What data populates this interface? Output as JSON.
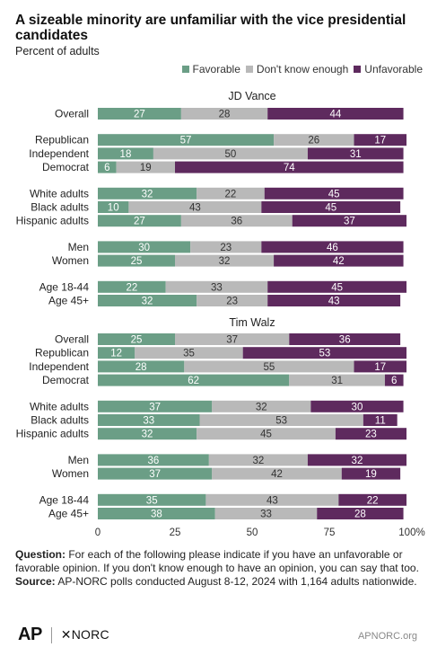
{
  "title": "A sizeable minority are unfamiliar with the vice presidential candidates",
  "subtitle": "Percent of adults",
  "legend": [
    {
      "label": "Favorable",
      "color": "#6b9e86"
    },
    {
      "label": "Don't know enough",
      "color": "#b9b9b9"
    },
    {
      "label": "Unfavorable",
      "color": "#5e2a5e"
    }
  ],
  "chart_data": {
    "type": "bar",
    "orientation": "horizontal",
    "stacked": true,
    "xlim": [
      0,
      100
    ],
    "x_ticks": [
      "0",
      "25",
      "50",
      "75",
      "100%"
    ],
    "series_names": [
      "Favorable",
      "Don't know enough",
      "Unfavorable"
    ],
    "groups": [
      {
        "title": "JD Vance",
        "rows": [
          {
            "label": "Overall",
            "values": [
              27,
              28,
              44
            ],
            "gap_before": false
          },
          {
            "label": "Republican",
            "values": [
              57,
              26,
              17
            ],
            "gap_before": true
          },
          {
            "label": "Independent",
            "values": [
              18,
              50,
              31
            ],
            "gap_before": false
          },
          {
            "label": "Democrat",
            "values": [
              6,
              19,
              74
            ],
            "gap_before": false
          },
          {
            "label": "White adults",
            "values": [
              32,
              22,
              45
            ],
            "gap_before": true
          },
          {
            "label": "Black adults",
            "values": [
              10,
              43,
              45
            ],
            "gap_before": false
          },
          {
            "label": "Hispanic adults",
            "values": [
              27,
              36,
              37
            ],
            "gap_before": false
          },
          {
            "label": "Men",
            "values": [
              30,
              23,
              46
            ],
            "gap_before": true
          },
          {
            "label": "Women",
            "values": [
              25,
              32,
              42
            ],
            "gap_before": false
          },
          {
            "label": "Age 18-44",
            "values": [
              22,
              33,
              45
            ],
            "gap_before": true
          },
          {
            "label": "Age 45+",
            "values": [
              32,
              23,
              43
            ],
            "gap_before": false
          }
        ]
      },
      {
        "title": "Tim Walz",
        "rows": [
          {
            "label": "Overall",
            "values": [
              25,
              37,
              36
            ],
            "gap_before": false
          },
          {
            "label": "Republican",
            "values": [
              12,
              35,
              53
            ],
            "gap_before": false
          },
          {
            "label": "Independent",
            "values": [
              28,
              55,
              17
            ],
            "gap_before": false
          },
          {
            "label": "Democrat",
            "values": [
              62,
              31,
              6
            ],
            "gap_before": false
          },
          {
            "label": "White adults",
            "values": [
              37,
              32,
              30
            ],
            "gap_before": true
          },
          {
            "label": "Black adults",
            "values": [
              33,
              53,
              11
            ],
            "gap_before": false
          },
          {
            "label": "Hispanic adults",
            "values": [
              32,
              45,
              23
            ],
            "gap_before": false
          },
          {
            "label": "Men",
            "values": [
              36,
              32,
              32
            ],
            "gap_before": true
          },
          {
            "label": "Women",
            "values": [
              37,
              42,
              19
            ],
            "gap_before": false
          },
          {
            "label": "Age 18-44",
            "values": [
              35,
              43,
              22
            ],
            "gap_before": true
          },
          {
            "label": "Age 45+",
            "values": [
              38,
              33,
              28
            ],
            "gap_before": false
          }
        ]
      }
    ]
  },
  "notes": {
    "question_label": "Question:",
    "question_text": "For each of the following please indicate if you have an unfavorable or favorable opinion. If you don't know enough to have an opinion, you can say that too.",
    "source_label": "Source:",
    "source_text": "AP-NORC polls conducted August 8-12, 2024 with 1,164 adults nationwide."
  },
  "footer": {
    "ap_logo": "AP",
    "norc_logo": "NORC",
    "site": "APNORC.org"
  }
}
